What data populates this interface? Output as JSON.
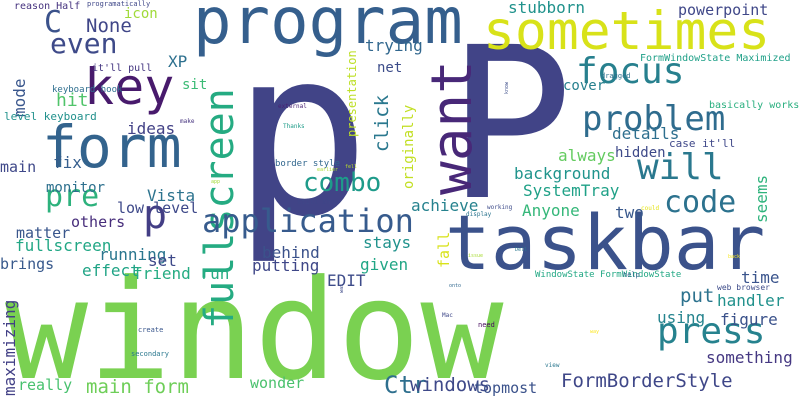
{
  "words": [
    {
      "text": "window",
      "color": "#7ad151"
    },
    {
      "text": "p",
      "color": "#414487"
    },
    {
      "text": "taskbar",
      "color": "#3b528b"
    },
    {
      "text": "program",
      "color": "#355f8d"
    },
    {
      "text": "P",
      "color": "#414487"
    },
    {
      "text": "sometimes",
      "color": "#d8e219"
    },
    {
      "text": "form",
      "color": "#33638d"
    },
    {
      "text": "want",
      "color": "#482878"
    },
    {
      "text": "key",
      "color": "#481a6c"
    },
    {
      "text": "focus",
      "color": "#27808e"
    },
    {
      "text": "fullscreen",
      "color": "#25ab82"
    },
    {
      "text": "problem",
      "color": "#2f6c8e"
    },
    {
      "text": "will",
      "color": "#2a788e"
    },
    {
      "text": "press",
      "color": "#26828e"
    },
    {
      "text": "application",
      "color": "#375b8d"
    },
    {
      "text": "even",
      "color": "#3e4a89"
    },
    {
      "text": "p",
      "color": "#433e85"
    },
    {
      "text": "combo",
      "color": "#1e9b8a"
    },
    {
      "text": "code",
      "color": "#2c728e"
    },
    {
      "text": "pre",
      "color": "#2db27d"
    },
    {
      "text": "C",
      "color": "#3b528b"
    },
    {
      "text": "None",
      "color": "#404688"
    },
    {
      "text": "FormBorderStyle",
      "color": "#3f4788"
    },
    {
      "text": "Ctr",
      "color": "#2e6f8e"
    },
    {
      "text": "windows",
      "color": "#3e4989"
    },
    {
      "text": "main form",
      "color": "#6ece58"
    },
    {
      "text": "click",
      "color": "#2a788e"
    },
    {
      "text": "stubborn",
      "color": "#20928c"
    },
    {
      "text": "powerpoint",
      "color": "#3f4788"
    },
    {
      "text": "trying",
      "color": "#31678e"
    },
    {
      "text": "fix",
      "color": "#355e8d"
    },
    {
      "text": "behind",
      "color": "#3b528b"
    },
    {
      "text": "put",
      "color": "#2c728e"
    },
    {
      "text": "hit",
      "color": "#50c46a"
    },
    {
      "text": "mode",
      "color": "#39568c"
    },
    {
      "text": "icon",
      "color": "#a0da39"
    },
    {
      "text": "XP",
      "color": "#2d708e"
    },
    {
      "text": "net",
      "color": "#3d4d8a"
    },
    {
      "text": "cover",
      "color": "#27808e"
    },
    {
      "text": "ideas",
      "color": "#424186"
    },
    {
      "text": "monitor",
      "color": "#2d708e"
    },
    {
      "text": "main",
      "color": "#3f4889"
    },
    {
      "text": "Vista",
      "color": "#2c738e"
    },
    {
      "text": "low level",
      "color": "#3e4989"
    },
    {
      "text": "achieve",
      "color": "#26828e"
    },
    {
      "text": "SystemTray",
      "color": "#1fa187"
    },
    {
      "text": "background",
      "color": "#1f948c"
    },
    {
      "text": "details",
      "color": "#2e6f8e"
    },
    {
      "text": "always",
      "color": "#63cb5f"
    },
    {
      "text": "hidden",
      "color": "#3e4a89"
    },
    {
      "text": "others",
      "color": "#472d7b"
    },
    {
      "text": "matter",
      "color": "#39568c"
    },
    {
      "text": "fullscreen",
      "color": "#22a785"
    },
    {
      "text": "brings",
      "color": "#38598c"
    },
    {
      "text": "effect",
      "color": "#20a486"
    },
    {
      "text": "running",
      "color": "#2a768e"
    },
    {
      "text": "friend run",
      "color": "#25ac82"
    },
    {
      "text": "set",
      "color": "#3e4989"
    },
    {
      "text": "putting",
      "color": "#3f4788"
    },
    {
      "text": "stays",
      "color": "#20928c"
    },
    {
      "text": "given",
      "color": "#21a685"
    },
    {
      "text": "EDIT",
      "color": "#3e4c8a"
    },
    {
      "text": "Anyone",
      "color": "#35b779"
    },
    {
      "text": "two",
      "color": "#38588c"
    },
    {
      "text": "fall",
      "color": "#d8e219"
    },
    {
      "text": "originally",
      "color": "#c2df23"
    },
    {
      "text": "presentation",
      "color": "#bddf26"
    },
    {
      "text": "seems",
      "color": "#2eb37c"
    },
    {
      "text": "time",
      "color": "#3a548c"
    },
    {
      "text": "handler",
      "color": "#21918c"
    },
    {
      "text": "figure",
      "color": "#3b528b"
    },
    {
      "text": "using",
      "color": "#25848e"
    },
    {
      "text": "something",
      "color": "#453882"
    },
    {
      "text": "maximizing",
      "color": "#424086"
    },
    {
      "text": "really",
      "color": "#48c16e"
    },
    {
      "text": "wonder",
      "color": "#4ac16d"
    },
    {
      "text": "topmost",
      "color": "#3b528b"
    },
    {
      "text": "sit",
      "color": "#3bbb75"
    },
    {
      "text": "case it'll",
      "color": "#3f4889"
    },
    {
      "text": "basically works",
      "color": "#29af7f"
    },
    {
      "text": "level keyboard",
      "color": "#21918c"
    },
    {
      "text": "keyboard hook",
      "color": "#2e6e8e"
    },
    {
      "text": "it'll pull",
      "color": "#453781"
    },
    {
      "text": "reason Half",
      "color": "#46337f"
    },
    {
      "text": "FormWindowState Maximized",
      "color": "#1fa088"
    },
    {
      "text": "WindowState FormWindowState",
      "color": "#22a884"
    },
    {
      "text": "web browser",
      "color": "#3e4c8a"
    },
    {
      "text": "border style",
      "color": "#31678e"
    },
    {
      "text": "programatically",
      "color": "#3f4788"
    },
    {
      "text": "help",
      "color": "#31678e"
    },
    {
      "text": "dragged",
      "color": "#2c728e"
    },
    {
      "text": "Mac",
      "color": "#3f4889"
    },
    {
      "text": "need",
      "color": "#460b5e"
    },
    {
      "text": "view",
      "color": "#2a778e"
    },
    {
      "text": "create",
      "color": "#39568c"
    },
    {
      "text": "secondary",
      "color": "#2a788e"
    },
    {
      "text": "external",
      "color": "#482173"
    },
    {
      "text": "Thanks",
      "color": "#1e9c89"
    },
    {
      "text": "make",
      "color": "#46337f"
    },
    {
      "text": "still show",
      "color": "#3f4788"
    },
    {
      "text": "display",
      "color": "#2b748e"
    },
    {
      "text": "working",
      "color": "#3e4c8a"
    },
    {
      "text": "know",
      "color": "#3d4e8a"
    },
    {
      "text": "onto",
      "color": "#31688e"
    },
    {
      "text": "app",
      "color": "#a2da37"
    },
    {
      "text": "could",
      "color": "#e5e419"
    },
    {
      "text": "was",
      "color": "#3e4a89"
    },
    {
      "text": "Dell",
      "color": "#2a778e"
    },
    {
      "text": "fell",
      "color": "#bade28"
    },
    {
      "text": "earlier",
      "color": "#addc30"
    },
    {
      "text": "issue",
      "color": "#a8db34"
    },
    {
      "text": "way",
      "color": "#fde725"
    },
    {
      "text": "back",
      "color": "#f6e620"
    }
  ]
}
